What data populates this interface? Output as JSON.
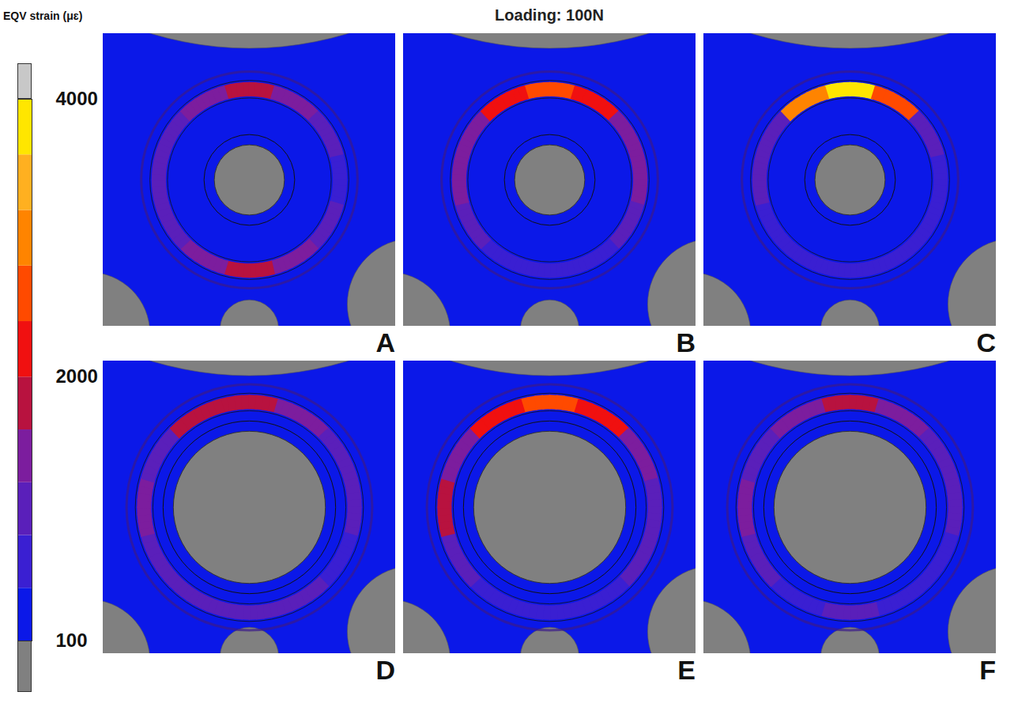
{
  "chart_data": {
    "type": "contour",
    "title": "Loading: 100N",
    "colorbar": {
      "label": "EQV strain (μɛ)",
      "range": [
        100,
        4000
      ],
      "ticks": [
        100,
        2000,
        4000
      ],
      "levels": [
        100,
        480,
        860,
        1240,
        1620,
        2000,
        2400,
        2800,
        3200,
        3600,
        4000
      ],
      "colors": [
        "#0b18e8",
        "#3a1fd2",
        "#5a1fba",
        "#7c1d9e",
        "#b8123f",
        "#f01010",
        "#ff4a00",
        "#ff8400",
        "#ffb020",
        "#ffe600"
      ],
      "under_color": "#808080",
      "over_color": "#c8c8c8"
    },
    "field_strain": 300,
    "angles": [
      0,
      30,
      60,
      90,
      120,
      150,
      180,
      210,
      240,
      270,
      300,
      330
    ],
    "series": [
      {
        "name": "A",
        "marker": "small",
        "values": [
          1800,
          1500,
          900,
          800,
          900,
          1300,
          1700,
          1300,
          900,
          900,
          1000,
          1500
        ]
      },
      {
        "name": "B",
        "marker": "small",
        "values": [
          2600,
          2200,
          1300,
          1500,
          900,
          800,
          700,
          800,
          900,
          1500,
          1300,
          2200
        ]
      },
      {
        "name": "C",
        "marker": "small",
        "values": [
          3600,
          2600,
          1000,
          800,
          700,
          600,
          600,
          600,
          700,
          900,
          1000,
          3000
        ]
      },
      {
        "name": "D",
        "marker": "large",
        "values": [
          1900,
          1600,
          1100,
          900,
          800,
          900,
          1000,
          900,
          900,
          1500,
          1200,
          1700
        ]
      },
      {
        "name": "E",
        "marker": "large",
        "values": [
          2400,
          2000,
          1300,
          1200,
          900,
          800,
          700,
          800,
          1000,
          1700,
          1400,
          2100
        ]
      },
      {
        "name": "F",
        "marker": "large",
        "values": [
          1700,
          1400,
          1000,
          900,
          800,
          800,
          900,
          800,
          900,
          1300,
          1100,
          1500
        ]
      }
    ]
  }
}
